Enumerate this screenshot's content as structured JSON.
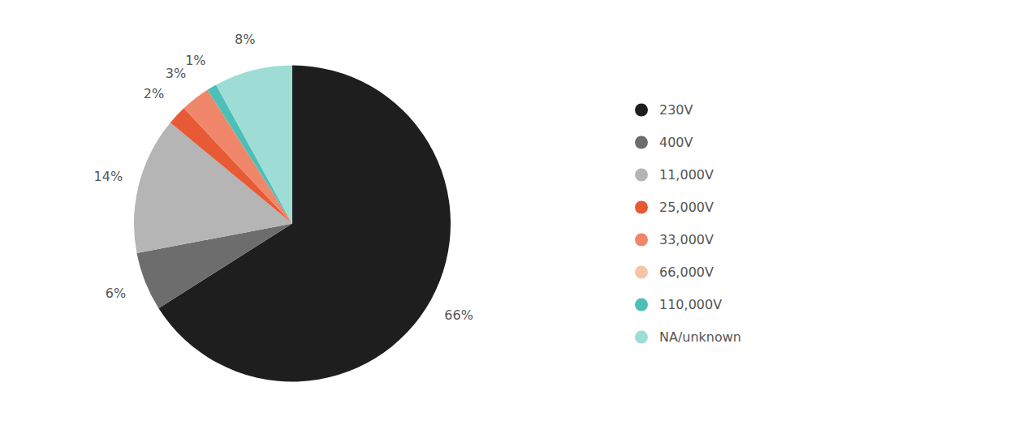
{
  "chart_data": {
    "type": "pie",
    "categories": [
      "230V",
      "400V",
      "11,000V",
      "25,000V",
      "33,000V",
      "66,000V",
      "110,000V",
      "NA/unknown"
    ],
    "values": [
      66,
      6,
      14,
      2,
      3,
      0.001,
      1,
      8
    ],
    "value_labels": [
      "66%",
      "6%",
      "14%",
      "2%",
      "3%",
      null,
      "1%",
      "8%"
    ],
    "colors": [
      "#1e1e1e",
      "#6d6d6d",
      "#b5b5b5",
      "#e85a36",
      "#f0876a",
      "#f7c4a8",
      "#4dbfb8",
      "#9dddd6"
    ],
    "data_labels": true,
    "legend": "right"
  }
}
